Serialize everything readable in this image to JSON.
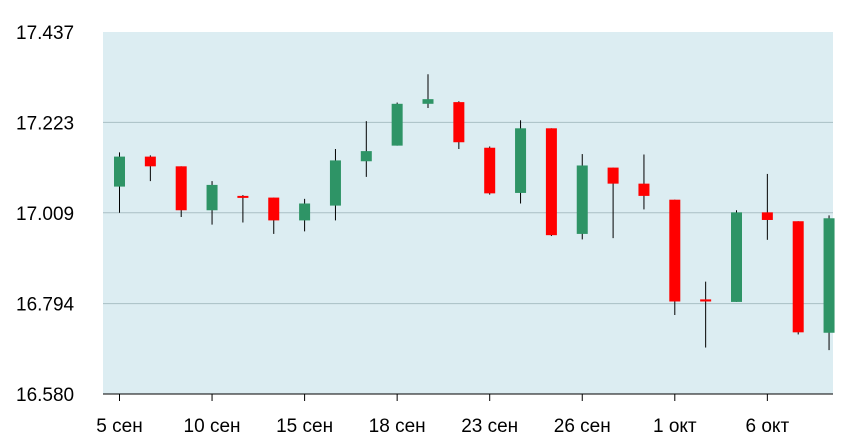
{
  "chart_data": {
    "type": "candlestick",
    "title": "",
    "xlabel": "",
    "ylabel": "",
    "ylim": [
      16.58,
      17.437
    ],
    "y_ticks": [
      "17.437",
      "17.223",
      "17.009",
      "16.794",
      "16.580"
    ],
    "x_ticks": [
      {
        "index": 0,
        "label": "5 сен"
      },
      {
        "index": 3,
        "label": "10 сен"
      },
      {
        "index": 6,
        "label": "15 сен"
      },
      {
        "index": 9,
        "label": "18 сен"
      },
      {
        "index": 12,
        "label": "23 сен"
      },
      {
        "index": 15,
        "label": "26 сен"
      },
      {
        "index": 18,
        "label": "1 окт"
      },
      {
        "index": 21,
        "label": "6 окт"
      }
    ],
    "grid": true,
    "legend": "none",
    "colors": {
      "up": "#2e9466",
      "down": "#ff0000",
      "wick": "#000000",
      "plot_background": "#dcedf2",
      "grid": "#a9bfc4",
      "axis": "#000000"
    },
    "candles": [
      {
        "open": 17.071,
        "high": 17.152,
        "low": 17.009,
        "close": 17.142
      },
      {
        "open": 17.142,
        "high": 17.145,
        "low": 17.084,
        "close": 17.119
      },
      {
        "open": 17.119,
        "high": 17.119,
        "low": 16.999,
        "close": 17.015
      },
      {
        "open": 17.015,
        "high": 17.084,
        "low": 16.981,
        "close": 17.075
      },
      {
        "open": 17.049,
        "high": 17.051,
        "low": 16.986,
        "close": 17.045
      },
      {
        "open": 17.045,
        "high": 17.045,
        "low": 16.959,
        "close": 16.991
      },
      {
        "open": 16.991,
        "high": 17.042,
        "low": 16.965,
        "close": 17.031
      },
      {
        "open": 17.026,
        "high": 17.16,
        "low": 16.991,
        "close": 17.133
      },
      {
        "open": 17.131,
        "high": 17.226,
        "low": 17.094,
        "close": 17.155
      },
      {
        "open": 17.168,
        "high": 17.27,
        "low": 17.168,
        "close": 17.267
      },
      {
        "open": 17.267,
        "high": 17.337,
        "low": 17.257,
        "close": 17.278
      },
      {
        "open": 17.271,
        "high": 17.273,
        "low": 17.16,
        "close": 17.176
      },
      {
        "open": 17.163,
        "high": 17.166,
        "low": 17.052,
        "close": 17.055
      },
      {
        "open": 17.056,
        "high": 17.228,
        "low": 17.031,
        "close": 17.209
      },
      {
        "open": 17.209,
        "high": 17.209,
        "low": 16.954,
        "close": 16.956
      },
      {
        "open": 16.959,
        "high": 17.148,
        "low": 16.946,
        "close": 17.121
      },
      {
        "open": 17.116,
        "high": 17.116,
        "low": 16.949,
        "close": 17.078
      },
      {
        "open": 17.078,
        "high": 17.147,
        "low": 17.017,
        "close": 17.049
      },
      {
        "open": 17.04,
        "high": 17.04,
        "low": 16.767,
        "close": 16.799
      },
      {
        "open": 16.804,
        "high": 16.846,
        "low": 16.69,
        "close": 16.799
      },
      {
        "open": 16.798,
        "high": 17.015,
        "low": 16.798,
        "close": 17.01
      },
      {
        "open": 17.01,
        "high": 17.101,
        "low": 16.945,
        "close": 16.992
      },
      {
        "open": 16.989,
        "high": 16.989,
        "low": 16.721,
        "close": 16.726
      },
      {
        "open": 16.725,
        "high": 17.003,
        "low": 16.684,
        "close": 16.996
      }
    ]
  }
}
